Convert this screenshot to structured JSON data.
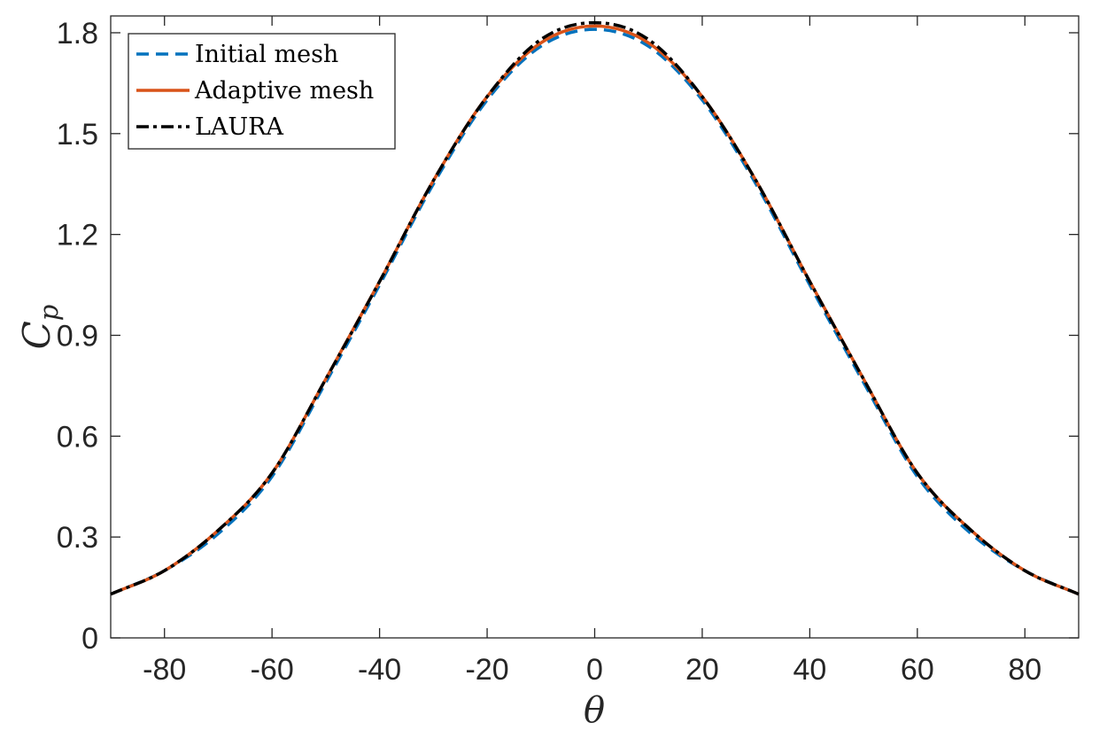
{
  "chart_data": {
    "type": "line",
    "xlabel": "θ",
    "ylabel": "C",
    "ylabel_subscript": "p",
    "xlim": [
      -90,
      90
    ],
    "ylim": [
      0,
      1.85
    ],
    "xticks": [
      -80,
      -60,
      -40,
      -20,
      0,
      20,
      40,
      60,
      80
    ],
    "xtick_labels": [
      "-80",
      "-60",
      "-40",
      "-20",
      "0",
      "20",
      "40",
      "60",
      "80"
    ],
    "yticks": [
      0,
      0.3,
      0.6,
      0.9,
      1.2,
      1.5,
      1.8
    ],
    "ytick_labels": [
      "0",
      "0.3",
      "0.6",
      "0.9",
      "1.2",
      "1.5",
      "1.8"
    ],
    "grid": false,
    "legend_position": "top-left",
    "x": [
      -90,
      -80,
      -70,
      -60,
      -50,
      -40,
      -30,
      -20,
      -10,
      0,
      10,
      20,
      30,
      40,
      50,
      60,
      70,
      80,
      90
    ],
    "series": [
      {
        "name": "Initial mesh",
        "color": "#0072BD",
        "style": "dashed",
        "values": [
          0.13,
          0.2,
          0.31,
          0.48,
          0.76,
          1.05,
          1.35,
          1.6,
          1.76,
          1.81,
          1.76,
          1.6,
          1.35,
          1.05,
          0.76,
          0.48,
          0.31,
          0.2,
          0.13
        ]
      },
      {
        "name": "Adaptive mesh",
        "color": "#D95319",
        "style": "solid",
        "values": [
          0.13,
          0.2,
          0.32,
          0.49,
          0.77,
          1.06,
          1.36,
          1.61,
          1.77,
          1.82,
          1.77,
          1.61,
          1.36,
          1.06,
          0.77,
          0.49,
          0.32,
          0.2,
          0.13
        ]
      },
      {
        "name": "LAURA",
        "color": "#000000",
        "style": "dashdot",
        "values": [
          0.13,
          0.2,
          0.32,
          0.49,
          0.77,
          1.06,
          1.36,
          1.61,
          1.78,
          1.83,
          1.78,
          1.61,
          1.36,
          1.06,
          0.77,
          0.49,
          0.32,
          0.2,
          0.13
        ]
      }
    ]
  }
}
